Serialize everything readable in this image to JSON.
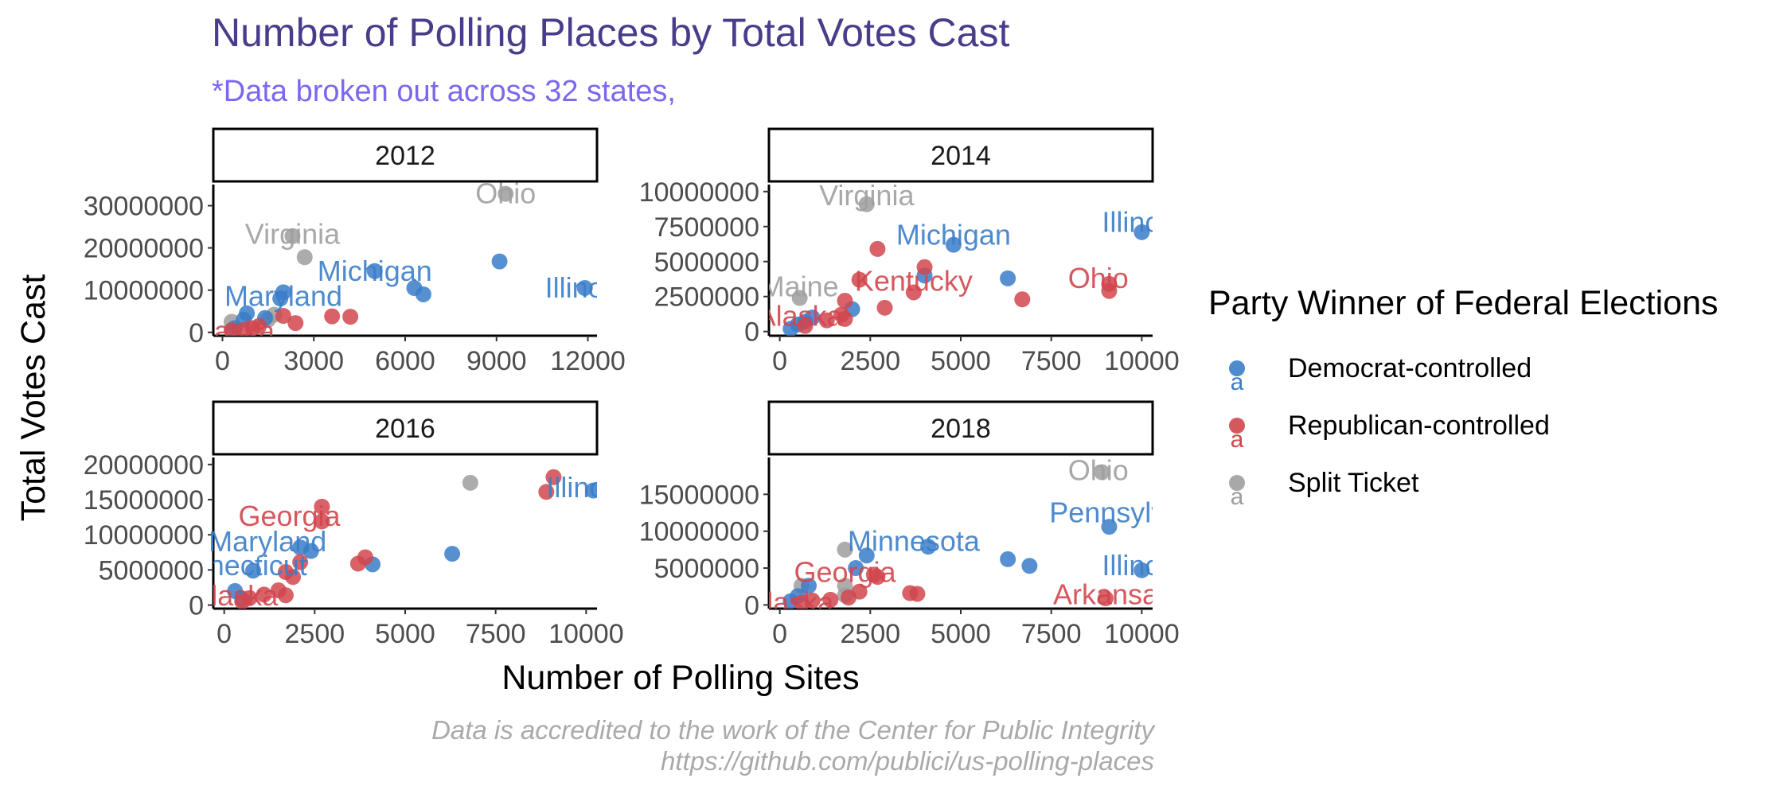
{
  "title": "Number of Polling Places by Total Votes Cast",
  "subtitle": "*Data broken out across 32 states,",
  "xlabel": "Number of Polling Sites",
  "ylabel": "Total Votes Cast",
  "caption_line1": "Data is accredited to the work of the Center for Public Integrity",
  "caption_line2": "https://github.com/publici/us-polling-places",
  "legend": {
    "title": "Party Winner of Federal Elections",
    "items": [
      {
        "label": "Democrat-controlled",
        "color": "#3a7dc9",
        "key_glyph": "a"
      },
      {
        "label": "Republican-controlled",
        "color": "#d1464e",
        "key_glyph": "a"
      },
      {
        "label": "Split Ticket",
        "color": "#9e9e9e",
        "key_glyph": "a"
      }
    ]
  },
  "colors": {
    "title": "#483d8b",
    "subtitle": "#7b68ee",
    "caption": "#a9a9a9",
    "dem": "#3a7dc9",
    "rep": "#d1464e",
    "split": "#9e9e9e"
  },
  "chart_data": {
    "type": "scatter",
    "facet_by": "year",
    "x_unit": "Number of Polling Sites",
    "y_unit": "Total Votes Cast",
    "panels": [
      {
        "strip": "2012",
        "xlim": [
          -300,
          12300
        ],
        "ylim": [
          -800000,
          35000000
        ],
        "xticks": [
          0,
          3000,
          6000,
          9000,
          12000
        ],
        "xtick_labels": [
          "0",
          "3000",
          "6000",
          "9000",
          "12000"
        ],
        "yticks": [
          0,
          10000000,
          20000000,
          30000000
        ],
        "ytick_labels": [
          "0",
          "10000000",
          "20000000",
          "30000000"
        ],
        "points": [
          {
            "x": 9300,
            "y": 32800000,
            "party": "split"
          },
          {
            "x": 2300,
            "y": 22800000,
            "party": "split"
          },
          {
            "x": 2700,
            "y": 17800000,
            "party": "split"
          },
          {
            "x": 1700,
            "y": 4200000,
            "party": "split"
          },
          {
            "x": 1500,
            "y": 3000000,
            "party": "split"
          },
          {
            "x": 300,
            "y": 2500000,
            "party": "split"
          },
          {
            "x": 9100,
            "y": 16800000,
            "party": "dem"
          },
          {
            "x": 11900,
            "y": 10500000,
            "party": "dem"
          },
          {
            "x": 6300,
            "y": 10500000,
            "party": "dem"
          },
          {
            "x": 6600,
            "y": 9000000,
            "party": "dem"
          },
          {
            "x": 5000,
            "y": 14500000,
            "party": "dem"
          },
          {
            "x": 2000,
            "y": 9500000,
            "party": "dem"
          },
          {
            "x": 1900,
            "y": 8000000,
            "party": "dem"
          },
          {
            "x": 800,
            "y": 4500000,
            "party": "dem"
          },
          {
            "x": 700,
            "y": 3000000,
            "party": "dem"
          },
          {
            "x": 1400,
            "y": 3400000,
            "party": "dem"
          },
          {
            "x": 400,
            "y": 1000000,
            "party": "dem"
          },
          {
            "x": 3600,
            "y": 3800000,
            "party": "rep"
          },
          {
            "x": 4200,
            "y": 3700000,
            "party": "rep"
          },
          {
            "x": 2000,
            "y": 3900000,
            "party": "rep"
          },
          {
            "x": 2400,
            "y": 2200000,
            "party": "rep"
          },
          {
            "x": 1000,
            "y": 1000000,
            "party": "rep"
          },
          {
            "x": 700,
            "y": 600000,
            "party": "rep"
          },
          {
            "x": 300,
            "y": 500000,
            "party": "rep"
          },
          {
            "x": 1200,
            "y": 1500000,
            "party": "rep"
          }
        ],
        "labels": [
          {
            "text": "Ohio",
            "x": 9300,
            "y": 32800000,
            "party": "split",
            "clip": false
          },
          {
            "text": "Virginia",
            "x": 2300,
            "y": 23200000,
            "party": "split",
            "clip": false
          },
          {
            "text": "Michigan",
            "x": 5000,
            "y": 14500000,
            "party": "dem",
            "clip": false
          },
          {
            "text": "Maryland",
            "x": 2000,
            "y": 8500000,
            "party": "dem",
            "clip": false
          },
          {
            "text": "Illinois",
            "x": 11900,
            "y": 10500000,
            "party": "dem",
            "clip": true
          },
          {
            "text": "Alaska",
            "x": 300,
            "y": 200000,
            "party": "rep",
            "clip": true
          }
        ]
      },
      {
        "strip": "2014",
        "xlim": [
          -300,
          10300
        ],
        "ylim": [
          -300000,
          10500000
        ],
        "xticks": [
          0,
          2500,
          5000,
          7500,
          10000
        ],
        "xtick_labels": [
          "0",
          "2500",
          "5000",
          "7500",
          "10000"
        ],
        "yticks": [
          0,
          2500000,
          5000000,
          7500000,
          10000000
        ],
        "ytick_labels": [
          "0",
          "2500000",
          "5000000",
          "7500000",
          "10000000"
        ],
        "points": [
          {
            "x": 2400,
            "y": 9100000,
            "party": "split"
          },
          {
            "x": 550,
            "y": 2400000,
            "party": "split"
          },
          {
            "x": 10000,
            "y": 7100000,
            "party": "dem"
          },
          {
            "x": 4800,
            "y": 6200000,
            "party": "dem"
          },
          {
            "x": 4000,
            "y": 4000000,
            "party": "dem"
          },
          {
            "x": 6300,
            "y": 3800000,
            "party": "dem"
          },
          {
            "x": 2000,
            "y": 1600000,
            "party": "dem"
          },
          {
            "x": 900,
            "y": 1000000,
            "party": "dem"
          },
          {
            "x": 700,
            "y": 700000,
            "party": "dem"
          },
          {
            "x": 300,
            "y": 200000,
            "party": "dem"
          },
          {
            "x": 500,
            "y": 500000,
            "party": "dem"
          },
          {
            "x": 2700,
            "y": 5900000,
            "party": "rep"
          },
          {
            "x": 4000,
            "y": 4600000,
            "party": "rep"
          },
          {
            "x": 3700,
            "y": 2800000,
            "party": "rep"
          },
          {
            "x": 2200,
            "y": 3700000,
            "party": "rep"
          },
          {
            "x": 9100,
            "y": 3400000,
            "party": "rep"
          },
          {
            "x": 9100,
            "y": 2900000,
            "party": "rep"
          },
          {
            "x": 6700,
            "y": 2300000,
            "party": "rep"
          },
          {
            "x": 2900,
            "y": 1700000,
            "party": "rep"
          },
          {
            "x": 1800,
            "y": 2200000,
            "party": "rep"
          },
          {
            "x": 1700,
            "y": 1200000,
            "party": "rep"
          },
          {
            "x": 1800,
            "y": 900000,
            "party": "rep"
          },
          {
            "x": 1300,
            "y": 800000,
            "party": "rep"
          },
          {
            "x": 700,
            "y": 400000,
            "party": "rep"
          }
        ],
        "labels": [
          {
            "text": "Virginia",
            "x": 2400,
            "y": 9700000,
            "party": "split",
            "clip": false
          },
          {
            "text": "Michigan",
            "x": 4800,
            "y": 6900000,
            "party": "dem",
            "clip": false
          },
          {
            "text": "Illinois",
            "x": 10000,
            "y": 7800000,
            "party": "dem",
            "clip": true
          },
          {
            "text": "Kentucky",
            "x": 3700,
            "y": 3600000,
            "party": "rep",
            "clip": false
          },
          {
            "text": "Ohio",
            "x": 8800,
            "y": 3800000,
            "party": "rep",
            "clip": false
          },
          {
            "text": "Maine",
            "x": 550,
            "y": 3200000,
            "party": "split",
            "clip": true
          },
          {
            "text": "Alaska",
            "x": 550,
            "y": 1100000,
            "party": "rep",
            "clip": true
          }
        ]
      },
      {
        "strip": "2016",
        "xlim": [
          -300,
          10300
        ],
        "ylim": [
          -500000,
          21000000
        ],
        "xticks": [
          0,
          2500,
          5000,
          7500,
          10000
        ],
        "xtick_labels": [
          "0",
          "2500",
          "5000",
          "7500",
          "10000"
        ],
        "yticks": [
          0,
          5000000,
          10000000,
          15000000,
          20000000
        ],
        "ytick_labels": [
          "0",
          "5000000",
          "10000000",
          "15000000",
          "20000000"
        ],
        "points": [
          {
            "x": 6800,
            "y": 17400000,
            "party": "split"
          },
          {
            "x": 10200,
            "y": 16300000,
            "party": "dem"
          },
          {
            "x": 6300,
            "y": 7300000,
            "party": "dem"
          },
          {
            "x": 4100,
            "y": 5800000,
            "party": "dem"
          },
          {
            "x": 2400,
            "y": 7700000,
            "party": "dem"
          },
          {
            "x": 2100,
            "y": 8200000,
            "party": "dem"
          },
          {
            "x": 800,
            "y": 4900000,
            "party": "dem"
          },
          {
            "x": 300,
            "y": 2000000,
            "party": "dem"
          },
          {
            "x": 500,
            "y": 800000,
            "party": "dem"
          },
          {
            "x": 9100,
            "y": 18200000,
            "party": "rep"
          },
          {
            "x": 8900,
            "y": 16100000,
            "party": "rep"
          },
          {
            "x": 2700,
            "y": 14000000,
            "party": "rep"
          },
          {
            "x": 2700,
            "y": 11900000,
            "party": "rep"
          },
          {
            "x": 3900,
            "y": 6800000,
            "party": "rep"
          },
          {
            "x": 3700,
            "y": 5900000,
            "party": "rep"
          },
          {
            "x": 2100,
            "y": 6100000,
            "party": "rep"
          },
          {
            "x": 1700,
            "y": 4700000,
            "party": "rep"
          },
          {
            "x": 1900,
            "y": 4000000,
            "party": "rep"
          },
          {
            "x": 1500,
            "y": 2100000,
            "party": "rep"
          },
          {
            "x": 1700,
            "y": 1400000,
            "party": "rep"
          },
          {
            "x": 1100,
            "y": 1500000,
            "party": "rep"
          },
          {
            "x": 700,
            "y": 1000000,
            "party": "rep"
          },
          {
            "x": 500,
            "y": 500000,
            "party": "rep"
          }
        ],
        "labels": [
          {
            "text": "Illinois",
            "x": 10000,
            "y": 16700000,
            "party": "dem",
            "clip": true
          },
          {
            "text": "Georgia",
            "x": 1800,
            "y": 12600000,
            "party": "rep",
            "clip": false
          },
          {
            "text": "Maryland",
            "x": 1200,
            "y": 9000000,
            "party": "dem",
            "clip": false
          },
          {
            "text": "Connecticut",
            "x": 200,
            "y": 5600000,
            "party": "dem",
            "clip": true
          },
          {
            "text": "Alaska",
            "x": 300,
            "y": 1300000,
            "party": "rep",
            "clip": true
          }
        ]
      },
      {
        "strip": "2018",
        "xlim": [
          -300,
          10300
        ],
        "ylim": [
          -500000,
          20000000
        ],
        "xticks": [
          0,
          2500,
          5000,
          7500,
          10000
        ],
        "xtick_labels": [
          "0",
          "2500",
          "5000",
          "7500",
          "10000"
        ],
        "yticks": [
          0,
          5000000,
          10000000,
          15000000
        ],
        "ytick_labels": [
          "0",
          "5000000",
          "10000000",
          "15000000"
        ],
        "points": [
          {
            "x": 8900,
            "y": 18000000,
            "party": "split"
          },
          {
            "x": 1800,
            "y": 7500000,
            "party": "split"
          },
          {
            "x": 1800,
            "y": 2600000,
            "party": "split"
          },
          {
            "x": 1800,
            "y": 1300000,
            "party": "split"
          },
          {
            "x": 600,
            "y": 2600000,
            "party": "split"
          },
          {
            "x": 9100,
            "y": 10600000,
            "party": "dem"
          },
          {
            "x": 10000,
            "y": 4700000,
            "party": "dem"
          },
          {
            "x": 6300,
            "y": 6200000,
            "party": "dem"
          },
          {
            "x": 6900,
            "y": 5300000,
            "party": "dem"
          },
          {
            "x": 4100,
            "y": 7900000,
            "party": "dem"
          },
          {
            "x": 2400,
            "y": 6700000,
            "party": "dem"
          },
          {
            "x": 2100,
            "y": 5000000,
            "party": "dem"
          },
          {
            "x": 800,
            "y": 2600000,
            "party": "dem"
          },
          {
            "x": 500,
            "y": 1200000,
            "party": "dem"
          },
          {
            "x": 300,
            "y": 500000,
            "party": "dem"
          },
          {
            "x": 9000,
            "y": 900000,
            "party": "rep"
          },
          {
            "x": 3800,
            "y": 1500000,
            "party": "rep"
          },
          {
            "x": 3600,
            "y": 1600000,
            "party": "rep"
          },
          {
            "x": 2600,
            "y": 4100000,
            "party": "rep"
          },
          {
            "x": 2700,
            "y": 3800000,
            "party": "rep"
          },
          {
            "x": 2200,
            "y": 1800000,
            "party": "rep"
          },
          {
            "x": 1900,
            "y": 1000000,
            "party": "rep"
          },
          {
            "x": 1400,
            "y": 700000,
            "party": "rep"
          },
          {
            "x": 900,
            "y": 600000,
            "party": "rep"
          },
          {
            "x": 600,
            "y": 300000,
            "party": "rep"
          }
        ],
        "labels": [
          {
            "text": "Ohio",
            "x": 8800,
            "y": 18200000,
            "party": "split",
            "clip": false
          },
          {
            "text": "Pennsylvania",
            "x": 9800,
            "y": 12500000,
            "party": "dem",
            "clip": true
          },
          {
            "text": "Minnesota",
            "x": 3700,
            "y": 8600000,
            "party": "dem",
            "clip": false
          },
          {
            "text": "Georgia",
            "x": 1800,
            "y": 4400000,
            "party": "rep",
            "clip": false
          },
          {
            "text": "Illinois",
            "x": 10000,
            "y": 5300000,
            "party": "dem",
            "clip": true
          },
          {
            "text": "Arkansas",
            "x": 9200,
            "y": 1400000,
            "party": "rep",
            "clip": true
          },
          {
            "text": "Alaska",
            "x": 300,
            "y": 300000,
            "party": "rep",
            "clip": true
          }
        ]
      }
    ]
  }
}
